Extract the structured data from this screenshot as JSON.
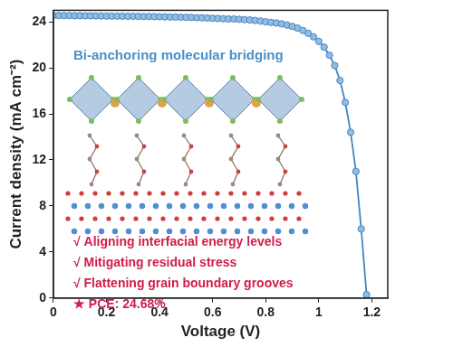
{
  "chart_data": {
    "type": "line",
    "x_label": "Voltage (V)",
    "y_label": "Current density (mA cm⁻²)",
    "x": [
      0,
      0.02,
      0.04,
      0.06,
      0.08,
      0.1,
      0.12,
      0.14,
      0.16,
      0.18,
      0.2,
      0.22,
      0.24,
      0.26,
      0.28,
      0.3,
      0.32,
      0.34,
      0.36,
      0.38,
      0.4,
      0.42,
      0.44,
      0.46,
      0.48,
      0.5,
      0.52,
      0.54,
      0.56,
      0.58,
      0.6,
      0.62,
      0.64,
      0.66,
      0.68,
      0.7,
      0.72,
      0.74,
      0.76,
      0.78,
      0.8,
      0.82,
      0.84,
      0.86,
      0.88,
      0.9,
      0.92,
      0.94,
      0.96,
      0.98,
      1.0,
      1.02,
      1.04,
      1.06,
      1.08,
      1.1,
      1.12,
      1.14,
      1.16,
      1.18
    ],
    "values": [
      24.55,
      24.55,
      24.54,
      24.54,
      24.53,
      24.53,
      24.52,
      24.52,
      24.51,
      24.51,
      24.5,
      24.5,
      24.49,
      24.49,
      24.48,
      24.48,
      24.47,
      24.46,
      24.46,
      24.45,
      24.44,
      24.43,
      24.42,
      24.41,
      24.4,
      24.39,
      24.38,
      24.36,
      24.35,
      24.33,
      24.31,
      24.29,
      24.27,
      24.25,
      24.24,
      24.22,
      24.19,
      24.16,
      24.12,
      24.07,
      24.0,
      23.95,
      23.9,
      23.82,
      23.72,
      23.6,
      23.45,
      23.25,
      23.0,
      22.7,
      22.3,
      21.8,
      21.1,
      20.2,
      18.9,
      17.0,
      14.4,
      11.0,
      6.0,
      0.3
    ],
    "color": "#3f86c6",
    "marker": "circle",
    "line_style": "solid",
    "xlim": [
      0,
      1.26
    ],
    "xticks": [
      0,
      0.2,
      0.4,
      0.6,
      0.8,
      1,
      1.2
    ],
    "ylim": [
      0,
      25
    ],
    "yticks": [
      0,
      4,
      8,
      12,
      16,
      20,
      24
    ],
    "grid": false,
    "annotations": [
      "Bi-anchoring molecular bridging",
      "√ Aligning interfacial energy levels",
      "√ Mitigating residual stress",
      "√ Flattening grain boundary grooves",
      "★ PCE: 24.68%"
    ]
  }
}
